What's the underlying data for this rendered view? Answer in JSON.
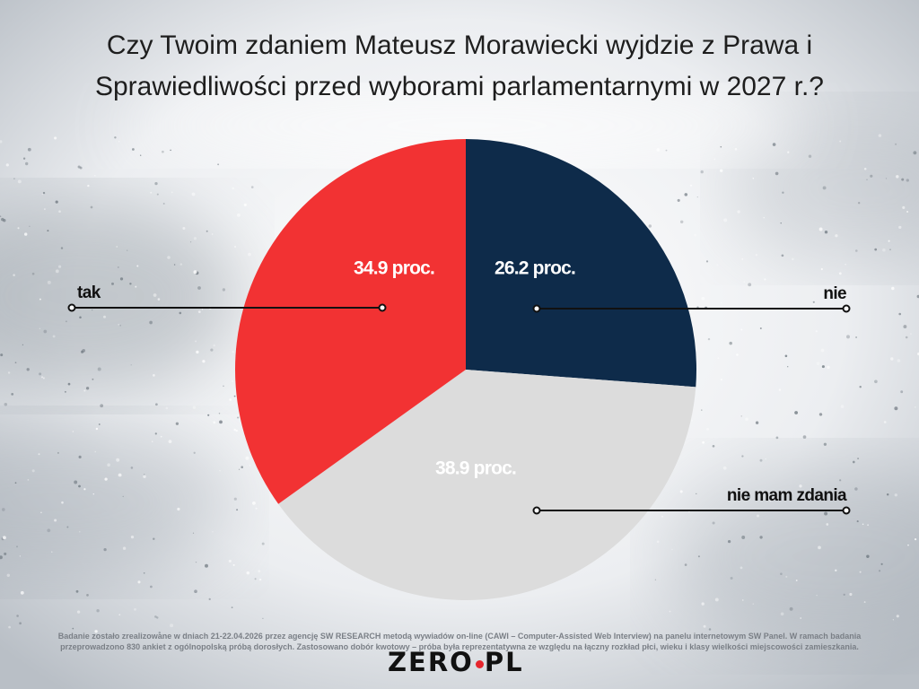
{
  "chart_data": {
    "type": "pie",
    "title": "Czy Twoim zdaniem Mateusz Morawiecki wyjdzie z Prawa i Sprawiedliwości przed wyborami parlamentarnymi w 2027 r.?",
    "legend": "callout lines",
    "slices": [
      {
        "name": "nie",
        "value": 26.2,
        "label": "26.2 proc.",
        "color": "#0e2b4a"
      },
      {
        "name": "nie mam zdania",
        "value": 38.9,
        "label": "38.9 proc.",
        "color": "#dcdcdc"
      },
      {
        "name": "tak",
        "value": 34.9,
        "label": "34.9 proc.",
        "color": "#f23233"
      }
    ]
  },
  "footnote": "Badanie zostało zrealizowane w dniach 21-22.04.2026 przez agencję SW RESEARCH metodą wywiadów on-line (CAWI – Computer-Assisted Web Interview) na panelu internetowym SW Panel. W ramach badania przeprowadzono 830 ankiet z ogólnopolską próbą dorosłych. Zastosowano dobór kwotowy – próba była reprezentatywna ze względu na łączny rozkład płci, wieku i klasy wielkości miejscowości zamieszkania.",
  "logo": {
    "left": "ZERO",
    "right": "PL"
  }
}
